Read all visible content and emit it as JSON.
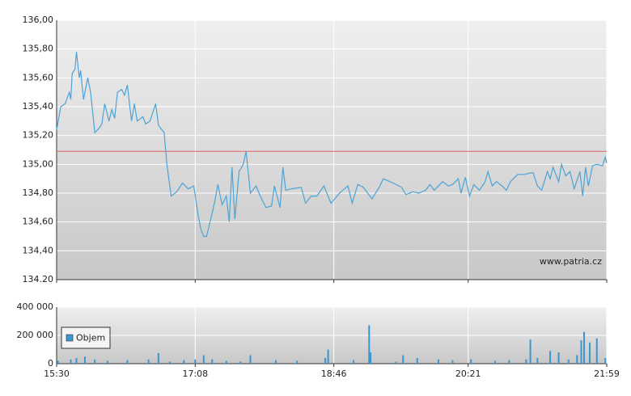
{
  "chart_data": [
    {
      "type": "line",
      "color": "#4ca3d6",
      "x": [
        "15:30",
        "15:33",
        "15:36",
        "15:39",
        "15:40",
        "15:41",
        "15:43",
        "15:44",
        "15:46",
        "15:47",
        "15:49",
        "15:52",
        "15:54",
        "15:57",
        "16:00",
        "16:02",
        "16:04",
        "16:07",
        "16:09",
        "16:11",
        "16:13",
        "16:16",
        "16:18",
        "16:20",
        "16:23",
        "16:25",
        "16:27",
        "16:31",
        "16:33",
        "16:36",
        "16:40",
        "16:42",
        "16:46",
        "16:48",
        "16:51",
        "16:55",
        "16:59",
        "17:03",
        "17:07",
        "17:10",
        "17:12",
        "17:14",
        "17:16",
        "17:19",
        "17:22",
        "17:24",
        "17:27",
        "17:30",
        "17:32",
        "17:34",
        "17:36",
        "17:39",
        "17:42",
        "17:44",
        "17:47",
        "17:51",
        "17:54",
        "17:58",
        "18:02",
        "18:04",
        "18:08",
        "18:10",
        "18:12",
        "18:16",
        "18:23",
        "18:26",
        "18:30",
        "18:34",
        "18:39",
        "18:44",
        "18:50",
        "18:56",
        "18:59",
        "19:03",
        "19:07",
        "19:13",
        "19:18",
        "19:21",
        "19:28",
        "19:34",
        "19:37",
        "19:42",
        "19:46",
        "19:51",
        "19:54",
        "19:57",
        "20:00",
        "20:03",
        "20:07",
        "20:10",
        "20:14",
        "20:16",
        "20:19",
        "20:22",
        "20:25",
        "20:29",
        "20:33",
        "20:35",
        "20:38",
        "20:41",
        "20:45",
        "20:48",
        "20:51",
        "20:56",
        "21:01",
        "21:05",
        "21:07",
        "21:10",
        "21:13",
        "21:17",
        "21:19",
        "21:21",
        "21:25",
        "21:27",
        "21:30",
        "21:33",
        "21:36",
        "21:40",
        "21:42",
        "21:44",
        "21:46",
        "21:49",
        "21:52",
        "21:56",
        "21:58",
        "21:59"
      ],
      "values": [
        135.24,
        135.4,
        135.42,
        135.5,
        135.45,
        135.63,
        135.66,
        135.78,
        135.6,
        135.65,
        135.45,
        135.6,
        135.5,
        135.22,
        135.25,
        135.28,
        135.42,
        135.3,
        135.38,
        135.32,
        135.5,
        135.52,
        135.48,
        135.55,
        135.3,
        135.42,
        135.3,
        135.33,
        135.28,
        135.3,
        135.42,
        135.27,
        135.22,
        135.0,
        134.78,
        134.81,
        134.87,
        134.83,
        134.85,
        134.65,
        134.55,
        134.5,
        134.5,
        134.62,
        134.75,
        134.86,
        134.72,
        134.78,
        134.6,
        134.98,
        134.62,
        134.95,
        135.0,
        135.09,
        134.8,
        134.85,
        134.78,
        134.7,
        134.71,
        134.85,
        134.7,
        134.98,
        134.82,
        134.83,
        134.84,
        134.73,
        134.78,
        134.78,
        134.85,
        134.73,
        134.8,
        134.85,
        134.73,
        134.86,
        134.84,
        134.76,
        134.84,
        134.9,
        134.87,
        134.84,
        134.79,
        134.81,
        134.8,
        134.82,
        134.86,
        134.82,
        134.85,
        134.88,
        134.85,
        134.86,
        134.9,
        134.8,
        134.91,
        134.78,
        134.86,
        134.82,
        134.88,
        134.95,
        134.85,
        134.88,
        134.85,
        134.82,
        134.88,
        134.93,
        134.93,
        134.94,
        134.94,
        134.85,
        134.82,
        134.95,
        134.9,
        134.98,
        134.88,
        135.0,
        134.92,
        134.95,
        134.83,
        134.95,
        134.78,
        134.98,
        134.85,
        134.99,
        135.0,
        134.99,
        135.05,
        135.01
      ],
      "reference_line": 135.09,
      "reference_color": "#e06060",
      "xlim": [
        "15:30",
        "21:59"
      ],
      "ylim": [
        134.2,
        136.0
      ],
      "yticks": [
        {
          "value": 134.2,
          "label": "134.20"
        },
        {
          "value": 134.4,
          "label": "134,40"
        },
        {
          "value": 134.6,
          "label": "134,60"
        },
        {
          "value": 134.8,
          "label": "134,80"
        },
        {
          "value": 135.0,
          "label": "135,00"
        },
        {
          "value": 135.2,
          "label": "135,20"
        },
        {
          "value": 135.4,
          "label": "135,40"
        },
        {
          "value": 135.6,
          "label": "135,60"
        },
        {
          "value": 135.8,
          "label": "135,80"
        },
        {
          "value": 136.0,
          "label": "136,00"
        }
      ],
      "grid": true,
      "watermark": "www.patria.cz"
    },
    {
      "type": "bar",
      "x": [
        "15:31",
        "15:40",
        "15:44",
        "15:50",
        "15:57",
        "16:06",
        "16:20",
        "16:35",
        "16:42",
        "16:50",
        "17:00",
        "17:08",
        "17:14",
        "17:20",
        "17:30",
        "17:40",
        "17:47",
        "18:05",
        "18:20",
        "18:40",
        "18:42",
        "19:00",
        "19:11",
        "19:12",
        "19:30",
        "19:35",
        "19:45",
        "20:00",
        "20:10",
        "20:23",
        "20:40",
        "20:50",
        "21:02",
        "21:05",
        "21:10",
        "21:19",
        "21:25",
        "21:32",
        "21:38",
        "21:41",
        "21:43",
        "21:47",
        "21:52",
        "21:58"
      ],
      "series": [
        {
          "name": "Objem",
          "color": "#3a95d0",
          "values": [
            20000,
            30000,
            40000,
            50000,
            30000,
            20000,
            25000,
            30000,
            75000,
            15000,
            25000,
            30000,
            60000,
            30000,
            20000,
            15000,
            60000,
            25000,
            20000,
            40000,
            100000,
            25000,
            272000,
            80000,
            15000,
            60000,
            40000,
            30000,
            25000,
            30000,
            20000,
            25000,
            30000,
            170000,
            40000,
            90000,
            80000,
            30000,
            60000,
            165000,
            225000,
            150000,
            180000,
            40000
          ]
        }
      ],
      "xlim": [
        "15:30",
        "21:59"
      ],
      "ylim": [
        0,
        400000
      ],
      "xticks": [
        "15:30",
        "17:08",
        "18:46",
        "20:21",
        "21:59"
      ],
      "yticks": [
        0,
        {
          "value": 200000,
          "label": "200 000"
        },
        {
          "value": 400000,
          "label": "400 000"
        }
      ],
      "grid": true,
      "legend": "bottom-left"
    }
  ]
}
